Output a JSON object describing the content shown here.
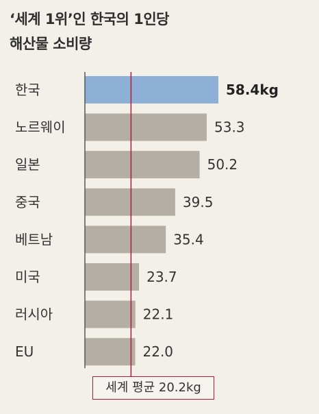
{
  "title_line1": "‘세계 1위’인 한국의 1인당",
  "title_line2": "해산물 소비량",
  "colors": {
    "background": "#f3f0ea",
    "bar_default": "#b5aea4",
    "bar_highlight": "#8eafd6",
    "axis_line": "#555555",
    "average_line": "#b01a37"
  },
  "chart_data": {
    "type": "bar",
    "orientation": "horizontal",
    "categories": [
      "한국",
      "노르웨이",
      "일본",
      "중국",
      "베트남",
      "미국",
      "러시아",
      "EU"
    ],
    "values": [
      58.4,
      53.3,
      50.2,
      39.5,
      35.4,
      23.7,
      22.1,
      22.0
    ],
    "value_labels": [
      "58.4kg",
      "53.3",
      "50.2",
      "39.5",
      "35.4",
      "23.7",
      "22.1",
      "22.0"
    ],
    "highlight_index": 0,
    "unit": "kg",
    "xlim": [
      0,
      58.4
    ],
    "average": {
      "value": 20.2,
      "label": "세계 평균 20.2kg"
    },
    "grid": false,
    "legend": "none"
  }
}
